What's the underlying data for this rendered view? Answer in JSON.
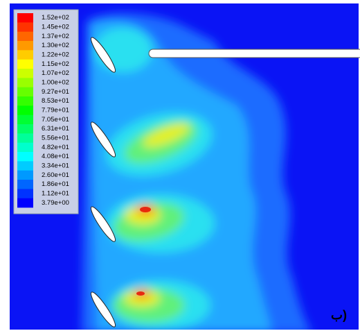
{
  "legend": {
    "labels": [
      "1.52e+02",
      "1.45e+02",
      "1.37e+02",
      "1.30e+02",
      "1.22e+02",
      "1.15e+02",
      "1.07e+02",
      "1.00e+02",
      "9.27e+01",
      "8.53e+01",
      "7.79e+01",
      "7.05e+01",
      "6.31e+01",
      "5.56e+01",
      "4.82e+01",
      "4.08e+01",
      "3.34e+01",
      "2.60e+01",
      "1.86e+01",
      "1.12e+01",
      "3.79e+00"
    ]
  },
  "label": "(ب"
}
